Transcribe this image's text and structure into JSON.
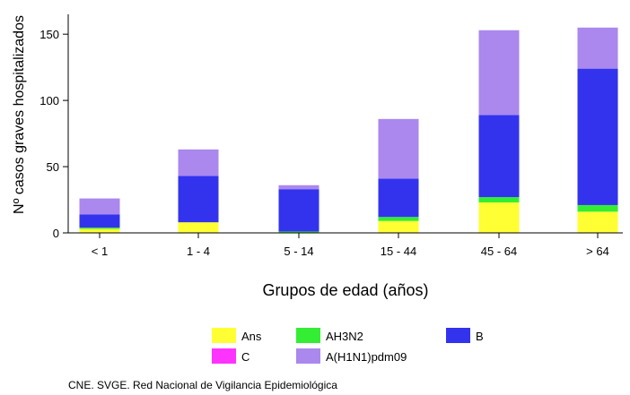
{
  "chart_data": {
    "type": "bar",
    "stacked": true,
    "categories": [
      "< 1",
      "1 - 4",
      "5 - 14",
      "15 - 44",
      "45 - 64",
      "> 64"
    ],
    "series": [
      {
        "name": "Ans",
        "color": "#ffff33",
        "values": [
          3,
          8,
          0,
          9,
          23,
          16
        ]
      },
      {
        "name": "AH3N2",
        "color": "#33ee33",
        "values": [
          1,
          0,
          1,
          3,
          4,
          5
        ]
      },
      {
        "name": "C",
        "color": "#ff33ff",
        "values": [
          0,
          0,
          0,
          0,
          0,
          0
        ]
      },
      {
        "name": "B",
        "color": "#3333ee",
        "values": [
          10,
          35,
          32,
          29,
          62,
          103
        ]
      },
      {
        "name": "A(H1N1)pdm09",
        "color": "#aa88ee",
        "values": [
          12,
          20,
          3,
          45,
          64,
          31
        ]
      }
    ],
    "xlabel": "Grupos de edad (años)",
    "ylabel": "Nº casos graves hospitalizados",
    "ylim": [
      0,
      165
    ],
    "yticks": [
      "0",
      "50",
      "100",
      "150"
    ],
    "ytick_values": [
      0,
      50,
      100,
      150
    ],
    "grid": false,
    "legend_position": "bottom"
  },
  "footer": {
    "source": "CNE. SVGE. Red Nacional de Vigilancia Epidemiológica"
  }
}
